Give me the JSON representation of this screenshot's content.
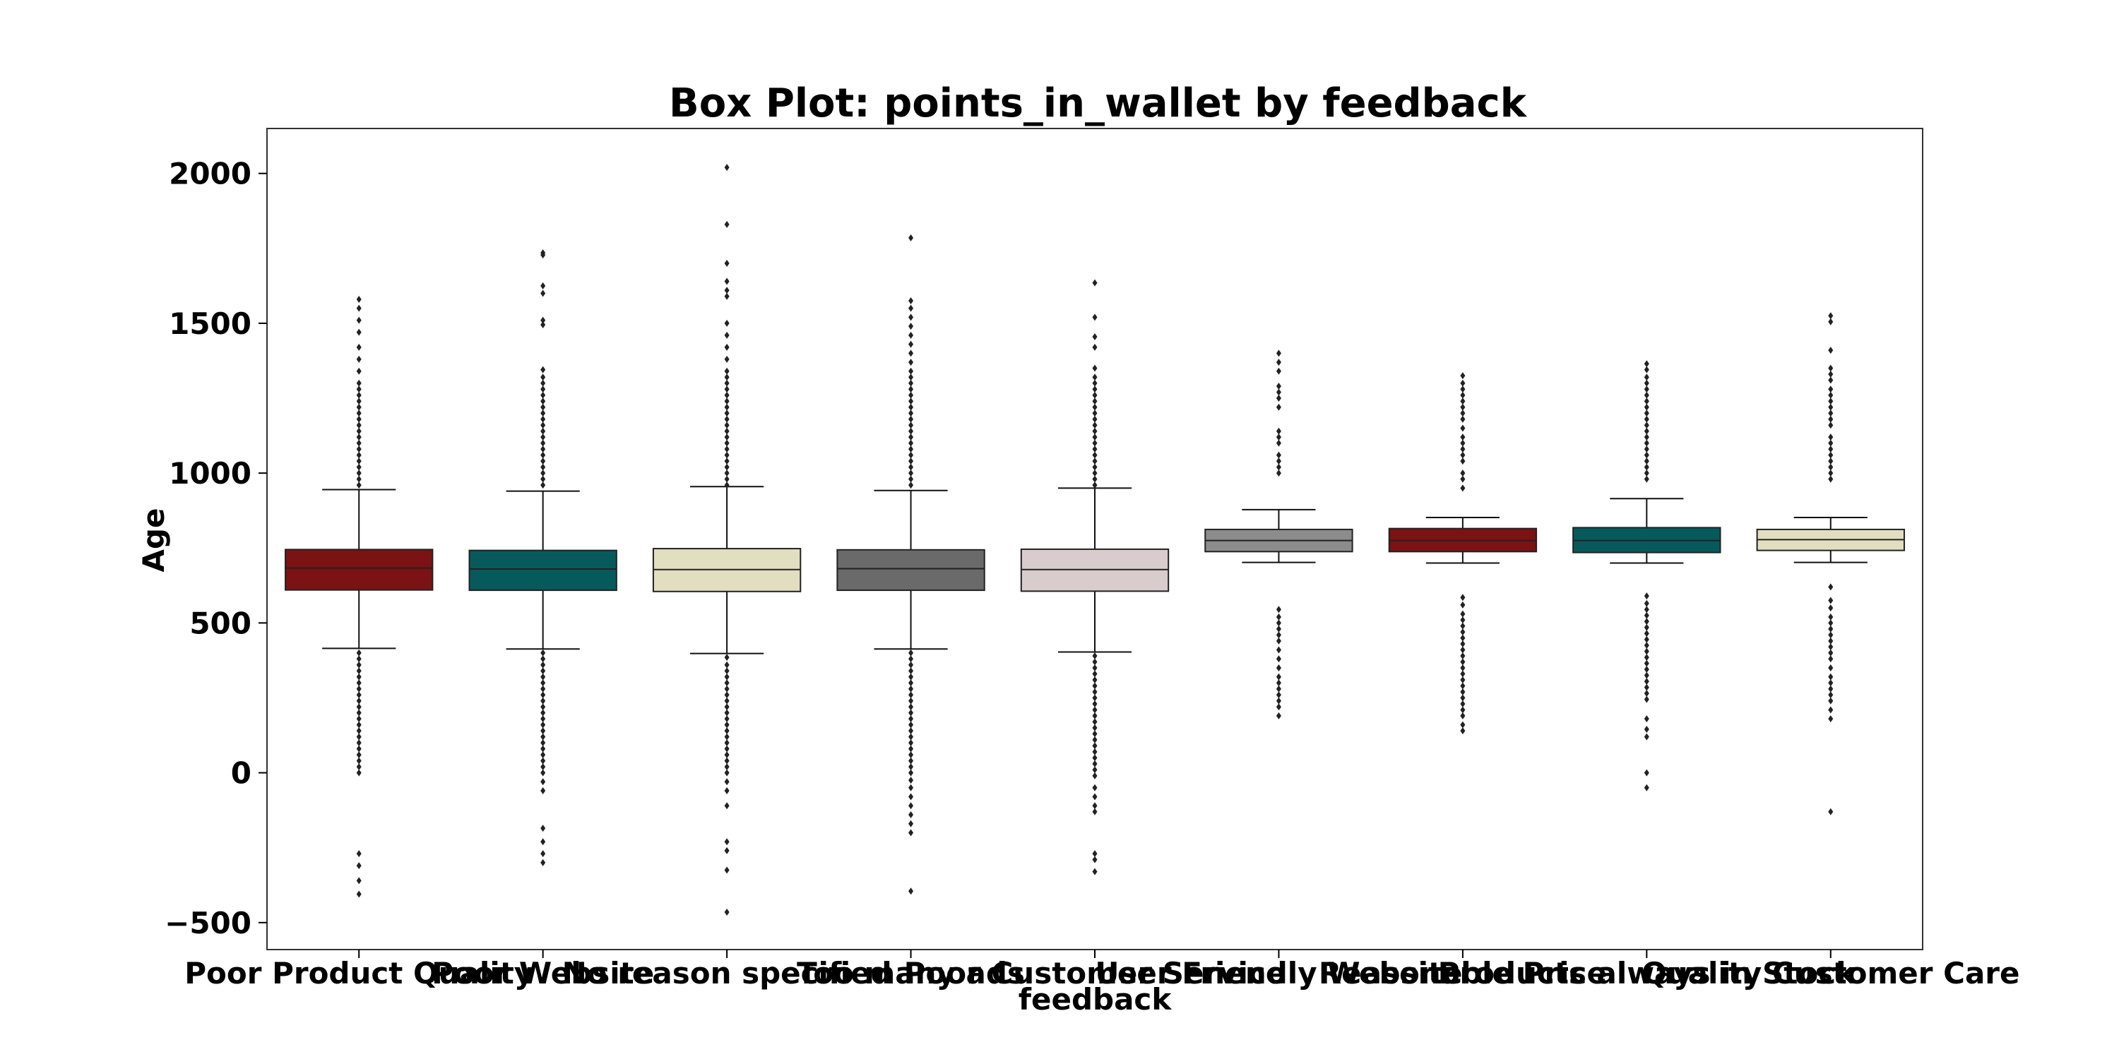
{
  "chart_data": {
    "type": "box",
    "title": "Box Plot: points_in_wallet by feedback",
    "xlabel": "feedback",
    "ylabel": "Age",
    "ylim": [
      -590,
      2150
    ],
    "yticks": [
      2000,
      1500,
      1000,
      500,
      0,
      -500
    ],
    "ytick_labels": [
      "2000",
      "1500",
      "1000",
      "500",
      "0",
      "−500"
    ],
    "grid": false,
    "colors": [
      "#7b1214",
      "#075a5c",
      "#e1dfc0",
      "#6a6a6a",
      "#d8cdcc",
      "#8c8c8c",
      "#7b1214",
      "#075a5c",
      "#e1dfc0"
    ],
    "categories": [
      "Poor Product Quality",
      "Poor Website",
      "No reason specified",
      "Too many ads",
      "Poor Customer Service",
      "User Friendly Website",
      "Reasonable Price",
      "Products always in Stock",
      "Quality Customer Care"
    ],
    "boxes": [
      {
        "whisker_low": 415,
        "q1": 610,
        "median": 683,
        "q3": 745,
        "whisker_high": 945,
        "outliers": [
          1580,
          1550,
          1510,
          1470,
          1420,
          1380,
          1340,
          1300,
          1280,
          1260,
          1240,
          1220,
          1200,
          1180,
          1160,
          1140,
          1120,
          1100,
          1080,
          1060,
          1040,
          1020,
          1000,
          980,
          960,
          400,
          380,
          360,
          340,
          320,
          300,
          280,
          260,
          240,
          220,
          200,
          180,
          160,
          140,
          120,
          100,
          80,
          60,
          40,
          20,
          0,
          -270,
          -310,
          -360,
          -405
        ]
      },
      {
        "whisker_low": 413,
        "q1": 609,
        "median": 680,
        "q3": 742,
        "whisker_high": 940,
        "outliers": [
          1735,
          1728,
          1625,
          1600,
          1510,
          1495,
          1345,
          1320,
          1300,
          1280,
          1260,
          1240,
          1220,
          1200,
          1180,
          1160,
          1140,
          1120,
          1100,
          1080,
          1060,
          1040,
          1020,
          1000,
          980,
          960,
          400,
          380,
          360,
          340,
          320,
          300,
          280,
          260,
          240,
          220,
          200,
          180,
          160,
          140,
          120,
          100,
          80,
          60,
          40,
          20,
          0,
          -30,
          -60,
          -185,
          -230,
          -270,
          -300
        ]
      },
      {
        "whisker_low": 398,
        "q1": 605,
        "median": 678,
        "q3": 748,
        "whisker_high": 955,
        "outliers": [
          2020,
          1830,
          1700,
          1640,
          1610,
          1590,
          1500,
          1460,
          1420,
          1380,
          1340,
          1320,
          1300,
          1280,
          1260,
          1240,
          1220,
          1200,
          1180,
          1160,
          1140,
          1120,
          1100,
          1080,
          1060,
          1040,
          1020,
          1000,
          980,
          960,
          385,
          360,
          340,
          320,
          300,
          280,
          260,
          240,
          220,
          200,
          180,
          160,
          140,
          120,
          100,
          80,
          60,
          40,
          20,
          0,
          -30,
          -60,
          -110,
          -230,
          -260,
          -325,
          -465
        ]
      },
      {
        "whisker_low": 413,
        "q1": 609,
        "median": 681,
        "q3": 744,
        "whisker_high": 942,
        "outliers": [
          1785,
          1575,
          1550,
          1520,
          1490,
          1460,
          1430,
          1400,
          1370,
          1340,
          1320,
          1300,
          1280,
          1260,
          1240,
          1220,
          1200,
          1180,
          1160,
          1140,
          1120,
          1100,
          1080,
          1060,
          1040,
          1020,
          1000,
          980,
          960,
          400,
          380,
          360,
          340,
          320,
          300,
          280,
          260,
          240,
          220,
          200,
          180,
          160,
          140,
          120,
          100,
          80,
          60,
          40,
          20,
          0,
          -25,
          -50,
          -80,
          -110,
          -140,
          -170,
          -200,
          -395
        ]
      },
      {
        "whisker_low": 403,
        "q1": 606,
        "median": 678,
        "q3": 746,
        "whisker_high": 950,
        "outliers": [
          1635,
          1520,
          1455,
          1420,
          1350,
          1320,
          1300,
          1280,
          1260,
          1240,
          1220,
          1200,
          1180,
          1160,
          1140,
          1120,
          1100,
          1080,
          1060,
          1040,
          1020,
          1000,
          980,
          960,
          390,
          370,
          350,
          330,
          310,
          290,
          270,
          250,
          230,
          210,
          190,
          170,
          150,
          130,
          110,
          90,
          70,
          50,
          30,
          10,
          -10,
          -50,
          -80,
          -110,
          -130,
          -270,
          -290,
          -330
        ]
      },
      {
        "whisker_low": 702,
        "q1": 738,
        "median": 775,
        "q3": 812,
        "whisker_high": 878,
        "outliers": [
          1400,
          1370,
          1340,
          1290,
          1270,
          1250,
          1220,
          1140,
          1120,
          1100,
          1060,
          1040,
          1020,
          1000,
          545,
          520,
          500,
          480,
          460,
          440,
          410,
          380,
          350,
          320,
          300,
          280,
          260,
          240,
          220,
          190
        ]
      },
      {
        "whisker_low": 700,
        "q1": 738,
        "median": 775,
        "q3": 815,
        "whisker_high": 852,
        "outliers": [
          1325,
          1300,
          1280,
          1260,
          1240,
          1220,
          1200,
          1180,
          1150,
          1120,
          1100,
          1080,
          1060,
          1040,
          1000,
          980,
          950,
          585,
          560,
          530,
          510,
          490,
          470,
          450,
          430,
          410,
          390,
          370,
          350,
          330,
          310,
          290,
          270,
          250,
          230,
          210,
          190,
          160,
          140
        ]
      },
      {
        "whisker_low": 700,
        "q1": 735,
        "median": 775,
        "q3": 818,
        "whisker_high": 915,
        "outliers": [
          1365,
          1345,
          1320,
          1300,
          1280,
          1260,
          1240,
          1220,
          1200,
          1180,
          1160,
          1140,
          1120,
          1100,
          1080,
          1060,
          1040,
          1020,
          1000,
          980,
          590,
          565,
          545,
          525,
          505,
          485,
          465,
          445,
          425,
          405,
          385,
          365,
          345,
          325,
          305,
          285,
          265,
          245,
          180,
          145,
          120,
          0,
          -50
        ]
      },
      {
        "whisker_low": 702,
        "q1": 742,
        "median": 778,
        "q3": 812,
        "whisker_high": 852,
        "outliers": [
          1525,
          1505,
          1410,
          1350,
          1330,
          1310,
          1280,
          1260,
          1240,
          1220,
          1200,
          1180,
          1160,
          1120,
          1100,
          1080,
          1060,
          1040,
          1020,
          1000,
          980,
          620,
          575,
          550,
          520,
          500,
          480,
          460,
          440,
          420,
          400,
          380,
          350,
          320,
          300,
          280,
          260,
          240,
          210,
          180,
          -130
        ]
      }
    ]
  }
}
